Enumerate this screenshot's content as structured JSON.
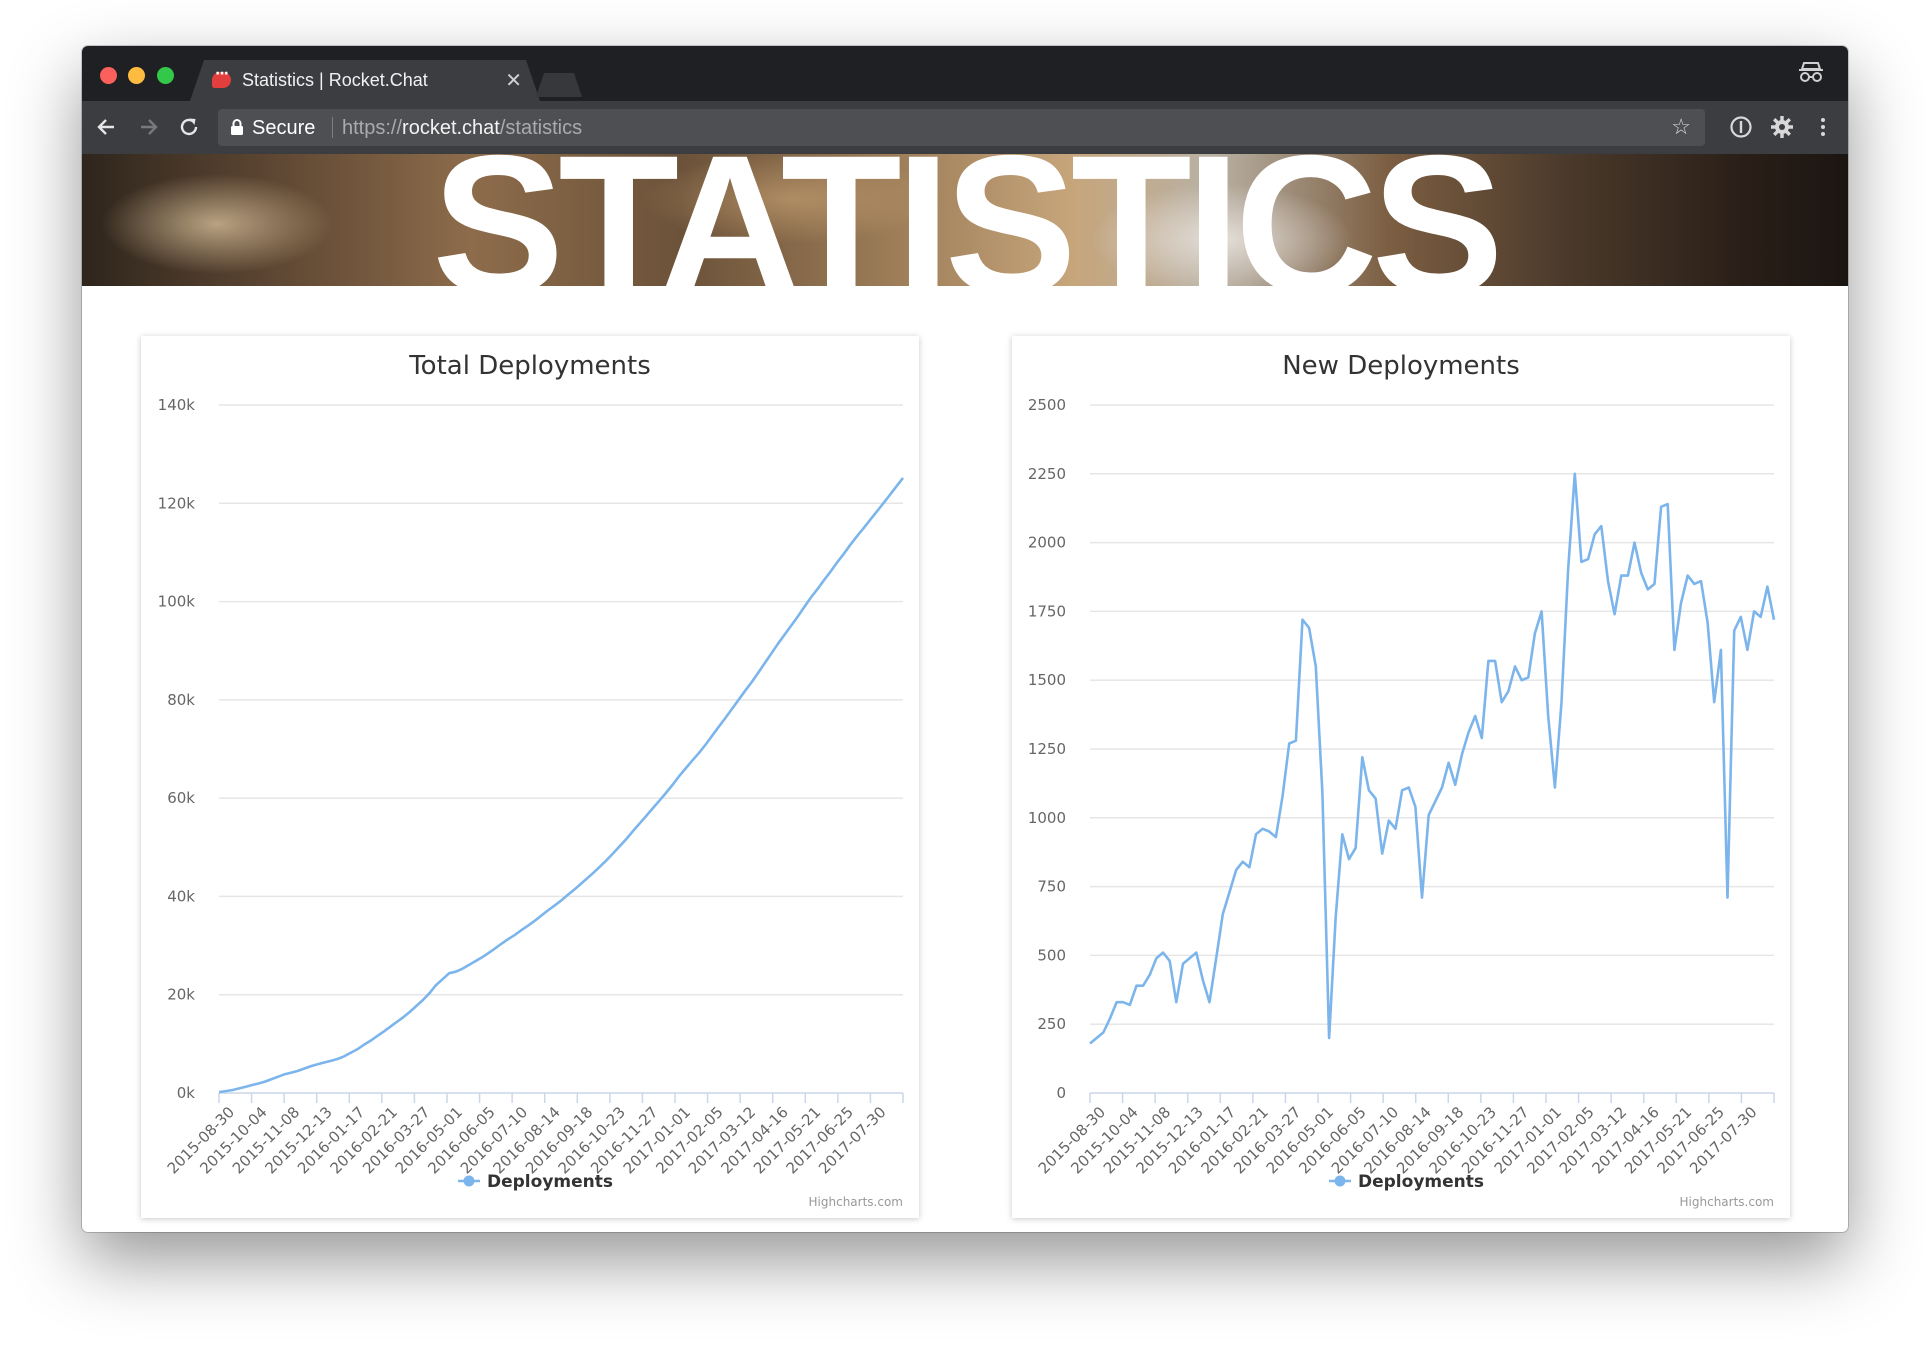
{
  "browser": {
    "tab_title": "Statistics | Rocket.Chat",
    "secure_label": "Secure",
    "url_scheme": "https://",
    "url_host": "rocket.chat",
    "url_path": "/statistics"
  },
  "page": {
    "banner_title": "STATISTICS"
  },
  "colors": {
    "series": "#7cb5ec",
    "grid": "#e6e6e6",
    "axis_line": "#ccd6eb",
    "tab_bar": "#1f2023",
    "toolbar": "#3c3d40"
  },
  "chart_data": [
    {
      "type": "line",
      "title": "Total Deployments",
      "ylim": [
        0,
        140000
      ],
      "yticks": [
        "0k",
        "20k",
        "40k",
        "60k",
        "80k",
        "100k",
        "120k",
        "140k"
      ],
      "x_labels": [
        "2015-08-30",
        "2015-10-04",
        "2015-11-08",
        "2015-12-13",
        "2016-01-17",
        "2016-02-21",
        "2016-03-27",
        "2016-05-01",
        "2016-06-05",
        "2016-07-10",
        "2016-08-14",
        "2016-09-18",
        "2016-10-23",
        "2016-11-27",
        "2017-01-01",
        "2017-02-05",
        "2017-03-12",
        "2017-04-16",
        "2017-05-21",
        "2017-06-25",
        "2017-07-30"
      ],
      "grid": true,
      "legend": "bottom-center",
      "credit": "Highcharts.com",
      "series": [
        {
          "name": "Deployments",
          "values": [
            180,
            380,
            600,
            920,
            1250,
            1600,
            1930,
            2320,
            2830,
            3320,
            3830,
            4160,
            4490,
            4980,
            5480,
            5870,
            6200,
            6530,
            6920,
            7440,
            8160,
            8880,
            9780,
            10600,
            11530,
            12450,
            13450,
            14420,
            15400,
            16490,
            17710,
            18930,
            20310,
            21950,
            23150,
            24370,
            24690,
            25280,
            26040,
            26850,
            27610,
            28500,
            29450,
            30430,
            31330,
            32190,
            33140,
            34060,
            35050,
            36090,
            37130,
            38110,
            39140,
            40290,
            41370,
            42520,
            43710,
            44920,
            46170,
            47460,
            48900,
            50330,
            51780,
            53380,
            54910,
            56450,
            58020,
            59570,
            61120,
            62780,
            64540,
            66130,
            67710,
            69230,
            70910,
            72740,
            74530,
            76310,
            78160,
            80020,
            81860,
            83620,
            85540,
            87530,
            89470,
            91420,
            93270,
            95120,
            96960,
            98900,
            100830,
            102540,
            104390,
            106130,
            108000,
            109730,
            111580,
            113300,
            114910,
            116620,
            118280,
            119990,
            121690,
            123440,
            125160
          ]
        }
      ]
    },
    {
      "type": "line",
      "title": "New Deployments",
      "ylim": [
        0,
        2500
      ],
      "yticks": [
        "0",
        "250",
        "500",
        "750",
        "1000",
        "1250",
        "1500",
        "1750",
        "2000",
        "2250",
        "2500"
      ],
      "x_labels": [
        "2015-08-30",
        "2015-10-04",
        "2015-11-08",
        "2015-12-13",
        "2016-01-17",
        "2016-02-21",
        "2016-03-27",
        "2016-05-01",
        "2016-06-05",
        "2016-07-10",
        "2016-08-14",
        "2016-09-18",
        "2016-10-23",
        "2016-11-27",
        "2017-01-01",
        "2017-02-05",
        "2017-03-12",
        "2017-04-16",
        "2017-05-21",
        "2017-06-25",
        "2017-07-30"
      ],
      "grid": true,
      "legend": "bottom-center",
      "credit": "Highcharts.com",
      "series": [
        {
          "name": "Deployments",
          "values": [
            180,
            200,
            220,
            270,
            330,
            330,
            320,
            390,
            390,
            430,
            490,
            510,
            480,
            330,
            470,
            490,
            510,
            410,
            330,
            490,
            650,
            730,
            810,
            840,
            820,
            940,
            960,
            950,
            930,
            1080,
            1270,
            1280,
            1720,
            1690,
            1550,
            1090,
            200,
            640,
            940,
            850,
            890,
            1220,
            1100,
            1070,
            870,
            990,
            960,
            1100,
            1110,
            1040,
            710,
            1010,
            1060,
            1110,
            1200,
            1120,
            1230,
            1310,
            1370,
            1290,
            1570,
            1570,
            1420,
            1460,
            1550,
            1500,
            1510,
            1670,
            1750,
            1370,
            1110,
            1420,
            1900,
            2250,
            1930,
            1940,
            2030,
            2060,
            1860,
            1740,
            1880,
            1880,
            2000,
            1890,
            1830,
            1850,
            2130,
            2140,
            1610,
            1780,
            1880,
            1850,
            1860,
            1710,
            1420,
            1610,
            710,
            1680,
            1730,
            1610,
            1750,
            1730,
            1840,
            1720
          ]
        }
      ]
    }
  ]
}
